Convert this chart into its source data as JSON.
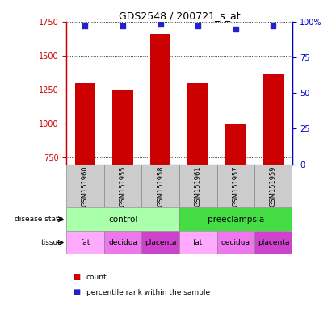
{
  "title": "GDS2548 / 200721_s_at",
  "samples": [
    "GSM151960",
    "GSM151955",
    "GSM151958",
    "GSM151961",
    "GSM151957",
    "GSM151959"
  ],
  "bar_values": [
    1300,
    1250,
    1660,
    1300,
    1000,
    1360
  ],
  "percentile_values": [
    97,
    97,
    98,
    97,
    95,
    97
  ],
  "bar_color": "#cc0000",
  "dot_color": "#2222cc",
  "ylim_left": [
    700,
    1750
  ],
  "ylim_right": [
    0,
    100
  ],
  "yticks_left": [
    750,
    1000,
    1250,
    1500,
    1750
  ],
  "yticks_right": [
    0,
    25,
    50,
    75,
    100
  ],
  "disease_state": [
    {
      "label": "control",
      "span": [
        0,
        3
      ],
      "color": "#aaffaa"
    },
    {
      "label": "preeclampsia",
      "span": [
        3,
        6
      ],
      "color": "#44dd44"
    }
  ],
  "tissue": [
    {
      "label": "fat",
      "span": [
        0,
        1
      ],
      "color": "#ffaaff"
    },
    {
      "label": "decidua",
      "span": [
        1,
        2
      ],
      "color": "#ee77ee"
    },
    {
      "label": "placenta",
      "span": [
        2,
        3
      ],
      "color": "#cc44cc"
    },
    {
      "label": "fat",
      "span": [
        3,
        4
      ],
      "color": "#ffaaff"
    },
    {
      "label": "decidua",
      "span": [
        4,
        5
      ],
      "color": "#ee77ee"
    },
    {
      "label": "placenta",
      "span": [
        5,
        6
      ],
      "color": "#cc44cc"
    }
  ],
  "left_axis_color": "#cc0000",
  "right_axis_color": "#0000cc",
  "grid_color": "#000000",
  "background_color": "#ffffff",
  "bar_width": 0.55,
  "sample_row_color": "#cccccc",
  "sample_row_edge": "#888888"
}
